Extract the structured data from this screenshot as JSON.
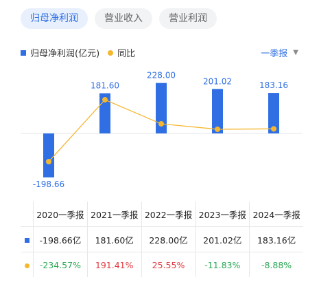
{
  "tabs": [
    {
      "label": "归母净利润",
      "active": true
    },
    {
      "label": "营业收入",
      "active": false
    },
    {
      "label": "营业利润",
      "active": false
    }
  ],
  "legend": {
    "bar_label": "归母净利润(亿元)",
    "line_label": "同比"
  },
  "period_select": {
    "value": "一季报"
  },
  "colors": {
    "bar": "#2f6fe3",
    "line": "#f5b72f",
    "negative": "#2aa853",
    "positive": "#e0393e"
  },
  "chart_data": {
    "type": "bar",
    "categories": [
      "2020一季报",
      "2021一季报",
      "2022一季报",
      "2023一季报",
      "2024一季报"
    ],
    "series": [
      {
        "name": "归母净利润(亿元)",
        "type": "bar",
        "values": [
          -198.66,
          181.6,
          228.0,
          201.02,
          183.16
        ],
        "labels": [
          "-198.66",
          "181.60",
          "228.00",
          "201.02",
          "183.16"
        ]
      },
      {
        "name": "同比",
        "type": "line",
        "values": [
          -234.57,
          191.41,
          25.55,
          -11.83,
          -8.88
        ]
      }
    ],
    "ylim": [
      -230,
      230
    ],
    "grid": false
  },
  "table": {
    "headers": [
      "2020一季报",
      "2021一季报",
      "2022一季报",
      "2023一季报",
      "2024一季报"
    ],
    "profit_row": [
      "-198.66亿",
      "181.60亿",
      "228.00亿",
      "201.02亿",
      "183.16亿"
    ],
    "yoy_row": [
      "-234.57%",
      "191.41%",
      "25.55%",
      "-11.83%",
      "-8.88%"
    ]
  }
}
